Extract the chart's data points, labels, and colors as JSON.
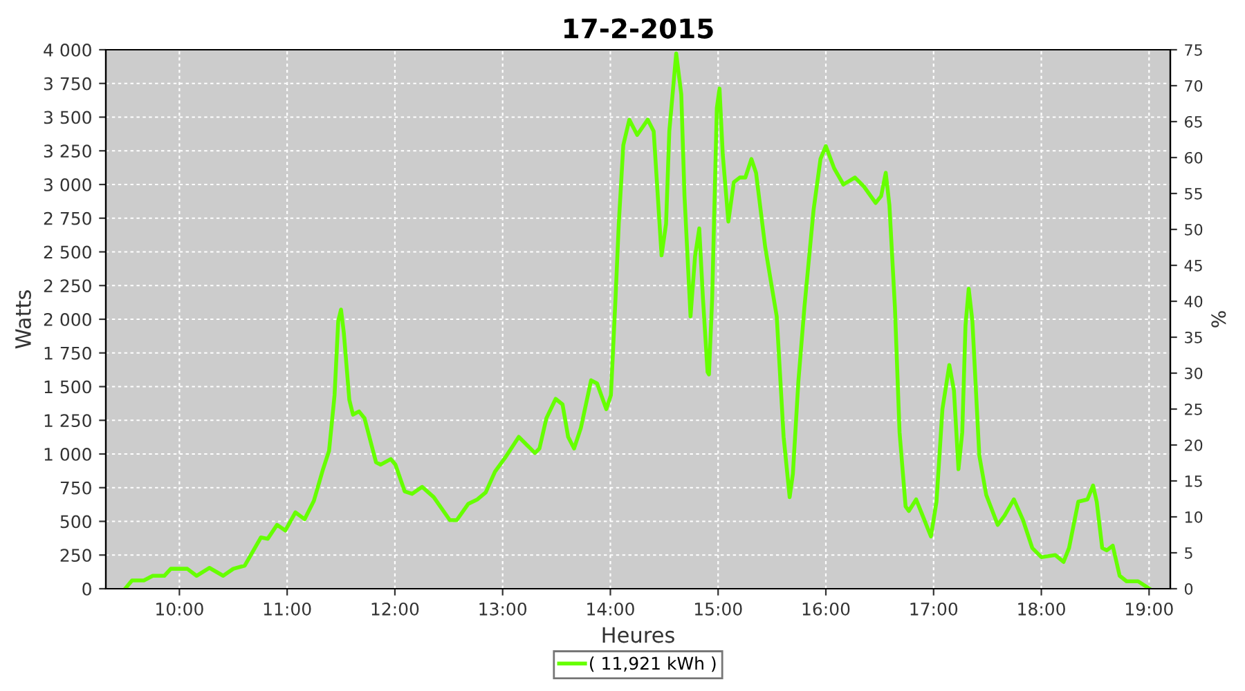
{
  "chart_data": {
    "type": "line",
    "title": "17-2-2015",
    "xlabel": "Heures",
    "ylabel": "Watts",
    "y2label": "%",
    "xlim": [
      9.317,
      19.197
    ],
    "xticks": [
      {
        "value": 10,
        "label": "10:00"
      },
      {
        "value": 11,
        "label": "11:00"
      },
      {
        "value": 12,
        "label": "12:00"
      },
      {
        "value": 13,
        "label": "13:00"
      },
      {
        "value": 14,
        "label": "14:00"
      },
      {
        "value": 15,
        "label": "15:00"
      },
      {
        "value": 16,
        "label": "16:00"
      },
      {
        "value": 17,
        "label": "17:00"
      },
      {
        "value": 18,
        "label": "18:00"
      },
      {
        "value": 19,
        "label": "19:00"
      }
    ],
    "ylim": [
      0,
      4000
    ],
    "yticks": [
      0,
      250,
      500,
      750,
      {
        "value": 1000,
        "label": "1 000"
      },
      {
        "value": 1250,
        "label": "1 250"
      },
      {
        "value": 1500,
        "label": "1 500"
      },
      {
        "value": 1750,
        "label": "1 750"
      },
      {
        "value": 2000,
        "label": "2 000"
      },
      {
        "value": 2250,
        "label": "2 250"
      },
      {
        "value": 2500,
        "label": "2 500"
      },
      {
        "value": 2750,
        "label": "2 750"
      },
      {
        "value": 3000,
        "label": "3 000"
      },
      {
        "value": 3250,
        "label": "3 250"
      },
      {
        "value": 3500,
        "label": "3 500"
      },
      {
        "value": 3750,
        "label": "3 750"
      },
      {
        "value": 4000,
        "label": "4 000"
      }
    ],
    "y2lim": [
      0,
      75
    ],
    "y2ticks": [
      0,
      5,
      10,
      15,
      20,
      25,
      30,
      35,
      40,
      45,
      50,
      55,
      60,
      65,
      70,
      75
    ],
    "grid": true,
    "legend": "bottom",
    "marker": "none",
    "line_style": "solid",
    "series": [
      {
        "name": "( 11,921 kWh )",
        "color": "#66ff00",
        "x": [
          9.496,
          9.56,
          9.67,
          9.753,
          9.86,
          9.92,
          10.073,
          10.159,
          10.278,
          10.406,
          10.5,
          10.607,
          10.757,
          10.82,
          10.906,
          10.983,
          11.077,
          11.162,
          11.248,
          11.333,
          11.389,
          11.44,
          11.474,
          11.5,
          11.526,
          11.577,
          11.611,
          11.667,
          11.718,
          11.825,
          11.868,
          11.962,
          12.005,
          12.091,
          12.159,
          12.253,
          12.36,
          12.51,
          12.574,
          12.68,
          12.766,
          12.843,
          12.929,
          13.023,
          13.15,
          13.235,
          13.3,
          13.342,
          13.406,
          13.492,
          13.556,
          13.608,
          13.663,
          13.727,
          13.821,
          13.877,
          13.962,
          14.005,
          14.048,
          14.078,
          14.12,
          14.176,
          14.249,
          14.347,
          14.402,
          14.432,
          14.475,
          14.517,
          14.547,
          14.611,
          14.658,
          14.688,
          14.744,
          14.786,
          14.825,
          14.859,
          14.902,
          14.915,
          14.945,
          14.988,
          15.013,
          15.043,
          15.095,
          15.146,
          15.202,
          15.253,
          15.309,
          15.352,
          15.437,
          15.501,
          15.544,
          15.608,
          15.664,
          15.694,
          15.745,
          15.801,
          15.886,
          15.95,
          16.0,
          16.077,
          16.163,
          16.27,
          16.355,
          16.462,
          16.513,
          16.556,
          16.59,
          16.641,
          16.684,
          16.74,
          16.77,
          16.838,
          16.898,
          16.975,
          17.027,
          17.082,
          17.146,
          17.189,
          17.231,
          17.266,
          17.296,
          17.326,
          17.36,
          17.424,
          17.488,
          17.595,
          17.659,
          17.745,
          17.83,
          17.916,
          18.001,
          18.129,
          18.206,
          18.257,
          18.343,
          18.428,
          18.48,
          18.514,
          18.565,
          18.608,
          18.663,
          18.727,
          18.791,
          18.898,
          19.005
        ],
        "values": [
          0,
          62,
          62,
          96,
          96,
          148,
          148,
          96,
          155,
          96,
          148,
          172,
          381,
          371,
          474,
          432,
          567,
          516,
          653,
          887,
          1024,
          1436,
          1986,
          2072,
          1900,
          1402,
          1292,
          1316,
          1265,
          938,
          921,
          962,
          921,
          722,
          704,
          756,
          680,
          509,
          509,
          629,
          663,
          715,
          869,
          972,
          1127,
          1059,
          1007,
          1041,
          1265,
          1409,
          1368,
          1127,
          1041,
          1196,
          1547,
          1523,
          1333,
          1436,
          2158,
          2708,
          3292,
          3481,
          3368,
          3481,
          3395,
          3017,
          2474,
          2708,
          3395,
          3973,
          3670,
          2914,
          2021,
          2467,
          2674,
          2158,
          1608,
          1590,
          2158,
          3567,
          3712,
          3224,
          2725,
          3017,
          3052,
          3052,
          3189,
          3087,
          2536,
          2227,
          2021,
          1127,
          680,
          852,
          1540,
          2089,
          2811,
          3189,
          3285,
          3120,
          3000,
          3052,
          2983,
          2863,
          2914,
          3087,
          2846,
          2089,
          1162,
          611,
          577,
          663,
          543,
          388,
          646,
          1333,
          1660,
          1471,
          887,
          1162,
          1952,
          2227,
          1986,
          990,
          698,
          474,
          543,
          663,
          509,
          302,
          234,
          250,
          199,
          302,
          646,
          663,
          766,
          646,
          302,
          285,
          319,
          96,
          55,
          55,
          0
        ]
      }
    ]
  }
}
